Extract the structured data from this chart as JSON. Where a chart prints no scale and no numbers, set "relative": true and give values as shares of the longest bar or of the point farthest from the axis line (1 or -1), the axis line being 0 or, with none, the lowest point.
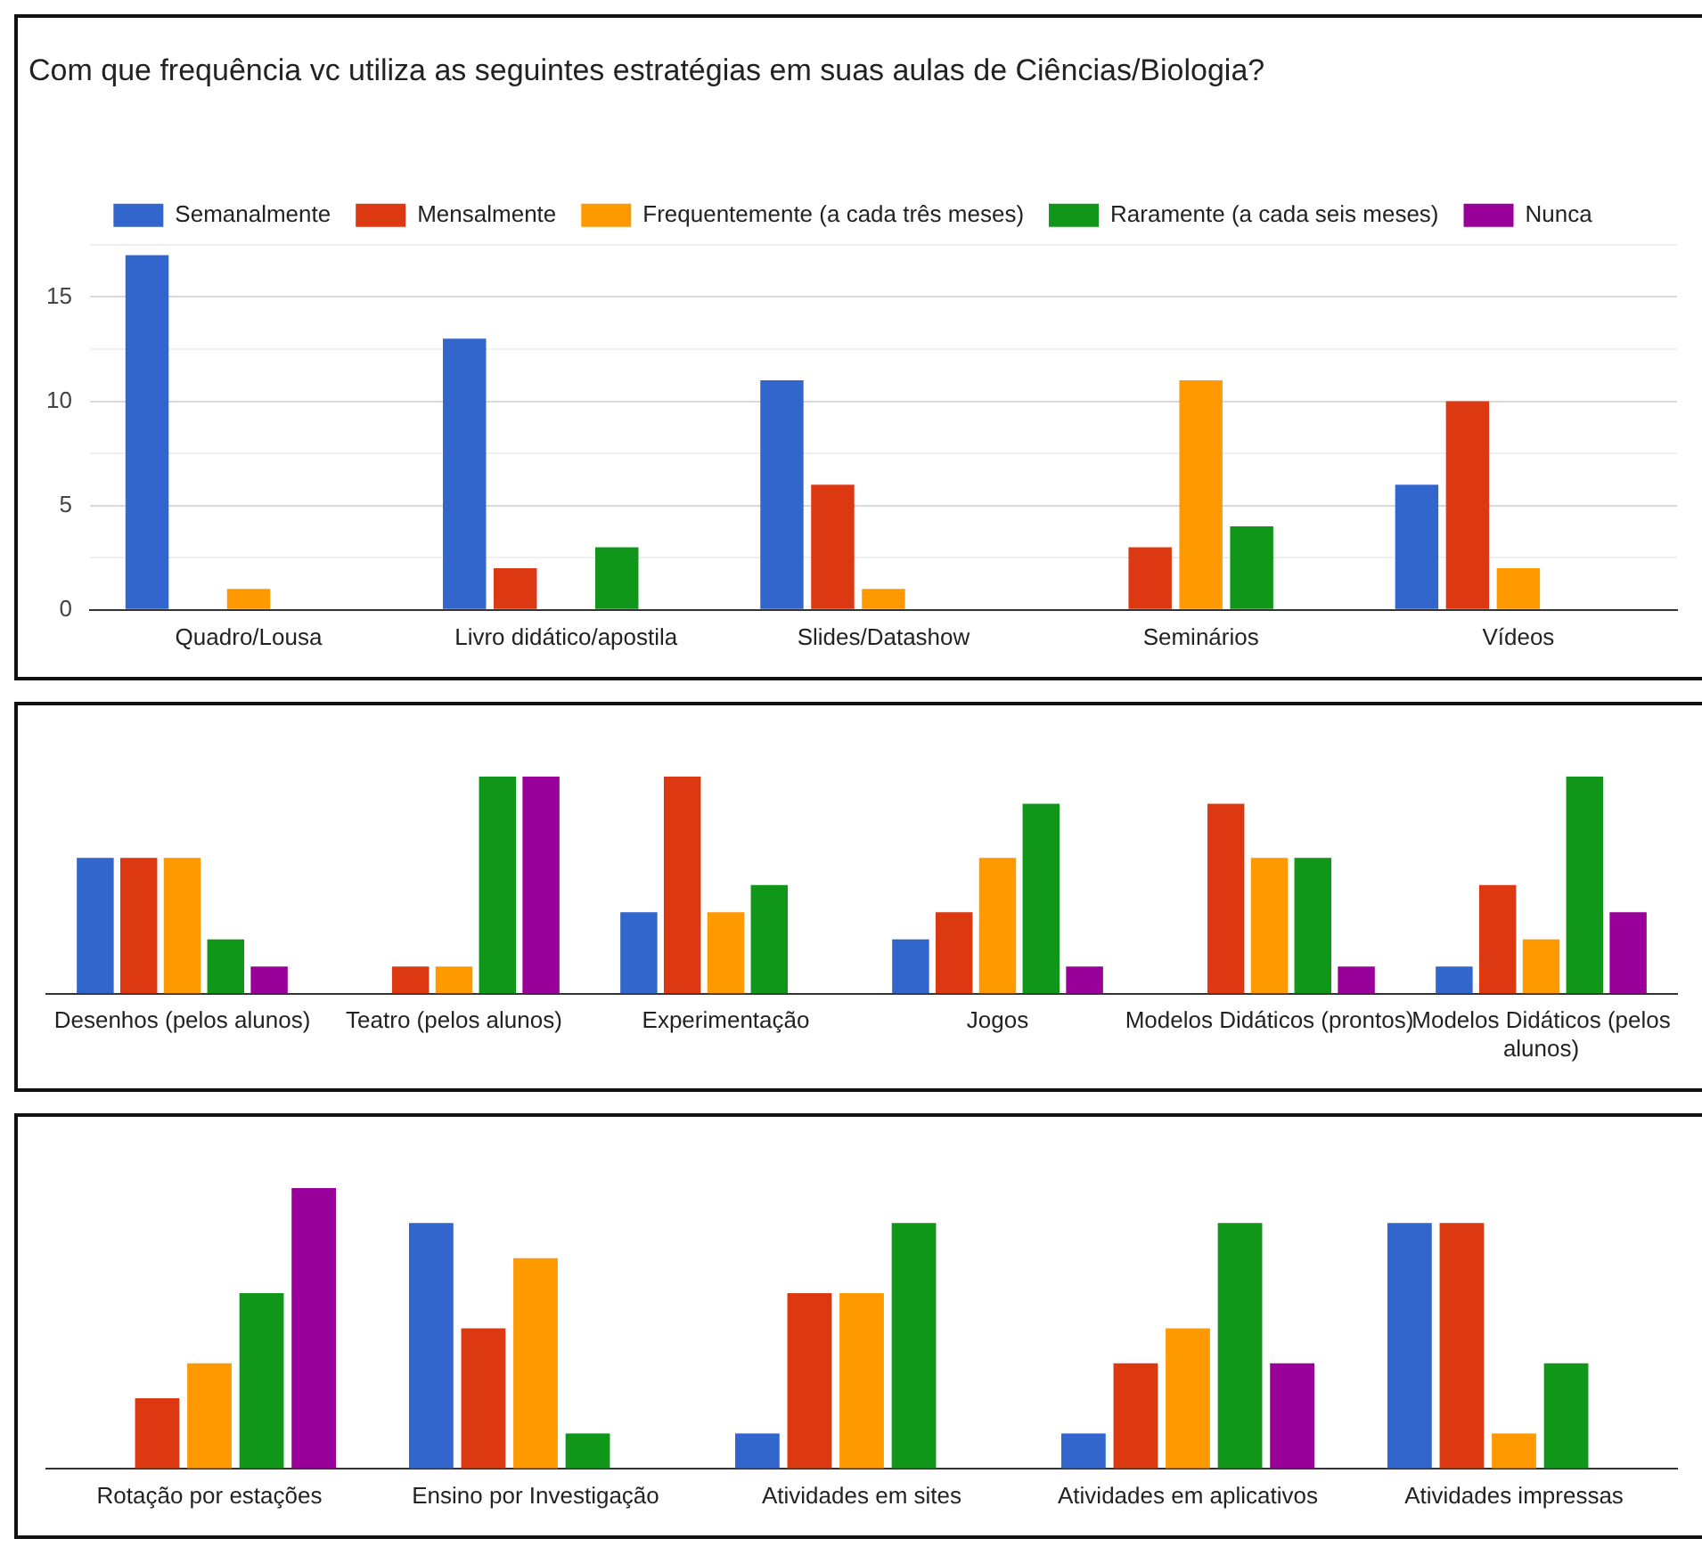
{
  "chart_data": [
    {
      "type": "bar",
      "title": "Com que frequência vc utiliza as seguintes estratégias em suas aulas de Ciências/Biologia?",
      "categories": [
        "Quadro/Lousa",
        "Livro didático/apostila",
        "Slides/Datashow",
        "Seminários",
        "Vídeos"
      ],
      "series": [
        {
          "name": "Semanalmente",
          "color": "#3366cc",
          "values": [
            17,
            13,
            11,
            0,
            6
          ]
        },
        {
          "name": "Mensalmente",
          "color": "#dc3912",
          "values": [
            0,
            2,
            6,
            3,
            10
          ]
        },
        {
          "name": "Frequentemente (a cada três meses)",
          "color": "#ff9900",
          "values": [
            1,
            0,
            1,
            11,
            2
          ]
        },
        {
          "name": "Raramente (a cada seis meses)",
          "color": "#109618",
          "values": [
            0,
            3,
            0,
            4,
            0
          ]
        },
        {
          "name": "Nunca",
          "color": "#990099",
          "values": [
            0,
            0,
            0,
            0,
            0
          ]
        }
      ],
      "ylim": [
        0,
        17.5
      ],
      "yticks": [
        0,
        {
          "value": 2.5,
          "label": null
        },
        5,
        {
          "value": 7.5,
          "label": null
        },
        10,
        {
          "value": 12.5,
          "label": null
        },
        15,
        {
          "value": 17.5,
          "label": null
        }
      ],
      "grid": "y",
      "legend": "top"
    },
    {
      "type": "bar",
      "relative": true,
      "categories": [
        "Desenhos (pelos alunos)",
        "Teatro (pelos alunos)",
        "Experimentação",
        "Jogos",
        "Modelos Didáticos (prontos)",
        "Modelos Didáticos (pelos alunos)"
      ],
      "series": [
        {
          "color": "#3366cc",
          "values": [
            0.625,
            0,
            0.375,
            0.25,
            0,
            0.125
          ]
        },
        {
          "color": "#dc3912",
          "values": [
            0.625,
            0.125,
            1,
            0.375,
            0.875,
            0.5
          ]
        },
        {
          "color": "#ff9900",
          "values": [
            0.625,
            0.125,
            0.375,
            0.625,
            0.625,
            0.25
          ]
        },
        {
          "color": "#109618",
          "values": [
            0.25,
            1,
            0.5,
            0.875,
            0.625,
            1
          ]
        },
        {
          "color": "#990099",
          "values": [
            0.125,
            1,
            0,
            0.125,
            0.125,
            0.375
          ]
        }
      ]
    },
    {
      "type": "bar",
      "relative": true,
      "categories": [
        "Rotação por estações",
        "Ensino por Investigação",
        "Atividades em sites",
        "Atividades em aplicativos",
        "Atividades impressas"
      ],
      "series": [
        {
          "color": "#3366cc",
          "values": [
            0,
            0.875,
            0.125,
            0.125,
            0.875
          ]
        },
        {
          "color": "#dc3912",
          "values": [
            0.25,
            0.5,
            0.625,
            0.375,
            0.875
          ]
        },
        {
          "color": "#ff9900",
          "values": [
            0.375,
            0.75,
            0.625,
            0.5,
            0.125
          ]
        },
        {
          "color": "#109618",
          "values": [
            0.625,
            0.125,
            0.875,
            0.875,
            0.375
          ]
        },
        {
          "color": "#990099",
          "values": [
            1,
            0,
            0,
            0.375,
            0
          ]
        }
      ]
    }
  ]
}
